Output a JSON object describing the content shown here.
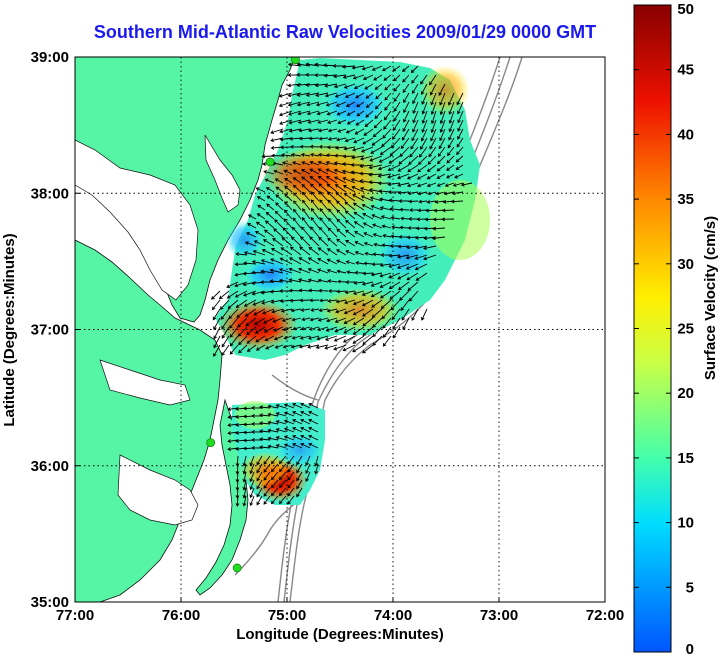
{
  "title": "Southern Mid-Atlantic Raw Velocities 2009/01/29 0000 GMT",
  "x_axis": {
    "label": "Longitude (Degrees:Minutes)",
    "ticks": [
      {
        "value": -77,
        "label": "77:00"
      },
      {
        "value": -76,
        "label": "76:00"
      },
      {
        "value": -75,
        "label": "75:00"
      },
      {
        "value": -74,
        "label": "74:00"
      },
      {
        "value": -73,
        "label": "73:00"
      },
      {
        "value": -72,
        "label": "72:00"
      }
    ]
  },
  "y_axis": {
    "label": "Latitude (Degrees:Minutes)",
    "ticks": [
      {
        "value": 35,
        "label": "35:00"
      },
      {
        "value": 36,
        "label": "36:00"
      },
      {
        "value": 37,
        "label": "37:00"
      },
      {
        "value": 38,
        "label": "38:00"
      },
      {
        "value": 39,
        "label": "39:00"
      }
    ]
  },
  "colorbar": {
    "label": "Surface Velocity (cm/s)",
    "min": 0,
    "max": 50,
    "ticks": [
      {
        "value": 0,
        "label": "0"
      },
      {
        "value": 5,
        "label": "5"
      },
      {
        "value": 10,
        "label": "10"
      },
      {
        "value": 15,
        "label": "15"
      },
      {
        "value": 20,
        "label": "20"
      },
      {
        "value": 25,
        "label": "25"
      },
      {
        "value": 30,
        "label": "30"
      },
      {
        "value": 35,
        "label": "35"
      },
      {
        "value": 40,
        "label": "40"
      },
      {
        "value": 45,
        "label": "45"
      },
      {
        "value": 50,
        "label": "50"
      }
    ]
  },
  "colors": {
    "land": "#55f5a5",
    "title": "#1a1aee",
    "grid": "#000000",
    "bathymetry": "#888888",
    "station": "#22dd22"
  },
  "map_extent": {
    "lon": [
      -77,
      -72
    ],
    "lat": [
      35,
      39
    ]
  },
  "hf_radar_stations": [
    {
      "lon": -74.92,
      "lat": 38.98
    },
    {
      "lon": -75.16,
      "lat": 38.23
    },
    {
      "lon": -75.72,
      "lat": 36.17
    },
    {
      "lon": -75.47,
      "lat": 35.25
    }
  ]
}
